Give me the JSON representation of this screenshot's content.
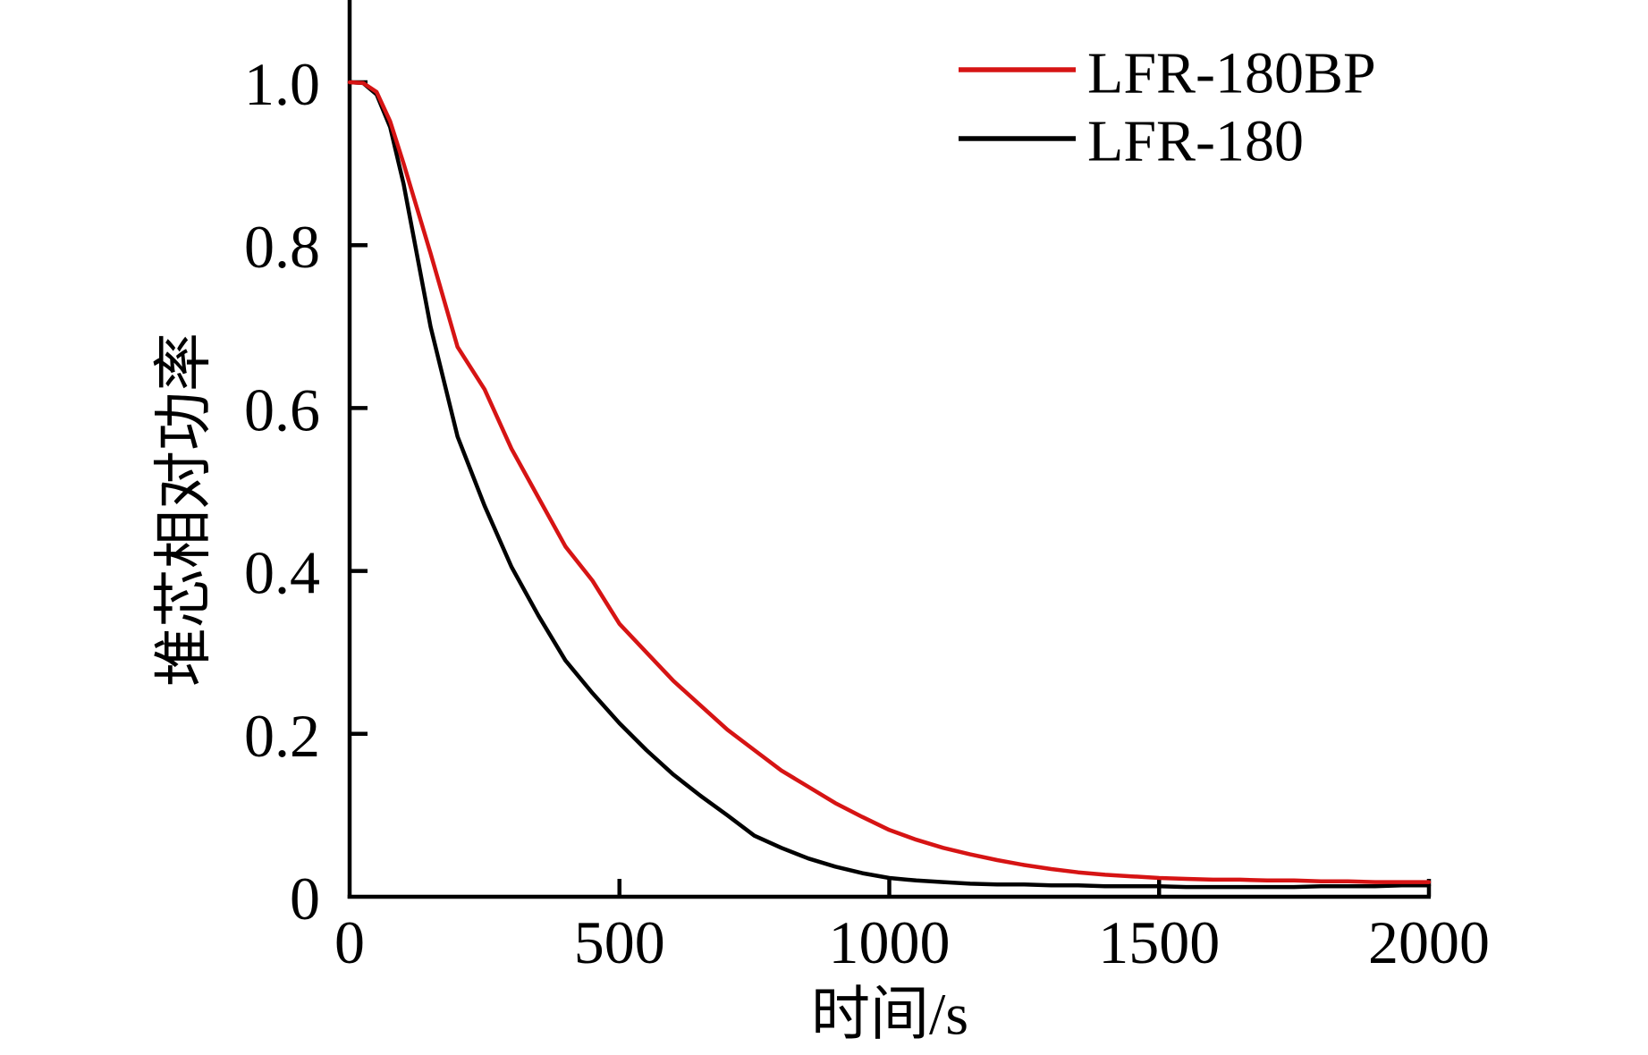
{
  "figure": {
    "background": "#ffffff",
    "axis_color": "#000000"
  },
  "chart_data": {
    "type": "line",
    "title": "",
    "xlabel": "时间/s",
    "ylabel": "堆芯相对功率",
    "xlim": [
      0,
      2000
    ],
    "ylim": [
      0,
      1.1
    ],
    "grid": false,
    "legend_position": "upper-right-inside",
    "xticks": [
      0,
      500,
      1000,
      1500,
      2000
    ],
    "xtick_labels": [
      "0",
      "500",
      "1000",
      "1500",
      "2000"
    ],
    "yticks": [
      0,
      0.2,
      0.4,
      0.6,
      0.8,
      1.0
    ],
    "ytick_labels": [
      "0",
      "0.2",
      "0.4",
      "0.6",
      "0.8",
      "1.0"
    ],
    "x": [
      0,
      25,
      50,
      75,
      100,
      150,
      200,
      250,
      300,
      350,
      400,
      450,
      500,
      550,
      600,
      650,
      700,
      750,
      800,
      850,
      900,
      950,
      1000,
      1050,
      1100,
      1150,
      1200,
      1250,
      1300,
      1350,
      1400,
      1450,
      1500,
      1550,
      1600,
      1650,
      1700,
      1750,
      1800,
      1850,
      1900,
      1950,
      2000
    ],
    "series": [
      {
        "name": "LFR-180BP",
        "color": "#d61414",
        "values": [
          1.0,
          0.999,
          0.988,
          0.952,
          0.9,
          0.79,
          0.675,
          0.623,
          0.55,
          0.49,
          0.43,
          0.388,
          0.335,
          0.3,
          0.265,
          0.235,
          0.205,
          0.18,
          0.155,
          0.135,
          0.115,
          0.098,
          0.082,
          0.07,
          0.06,
          0.052,
          0.045,
          0.039,
          0.034,
          0.03,
          0.027,
          0.025,
          0.023,
          0.022,
          0.021,
          0.021,
          0.02,
          0.02,
          0.019,
          0.019,
          0.018,
          0.018,
          0.018
        ]
      },
      {
        "name": "LFR-180",
        "color": "#000000",
        "values": [
          1.0,
          0.999,
          0.985,
          0.945,
          0.875,
          0.7,
          0.565,
          0.48,
          0.405,
          0.345,
          0.29,
          0.25,
          0.213,
          0.18,
          0.15,
          0.124,
          0.1,
          0.075,
          0.06,
          0.047,
          0.037,
          0.029,
          0.023,
          0.02,
          0.018,
          0.016,
          0.015,
          0.015,
          0.014,
          0.014,
          0.013,
          0.013,
          0.013,
          0.012,
          0.012,
          0.012,
          0.012,
          0.012,
          0.013,
          0.013,
          0.013,
          0.014,
          0.014
        ]
      }
    ]
  },
  "geometry_note": "axes origin bottom-left, no top/right spines, inward ticks"
}
